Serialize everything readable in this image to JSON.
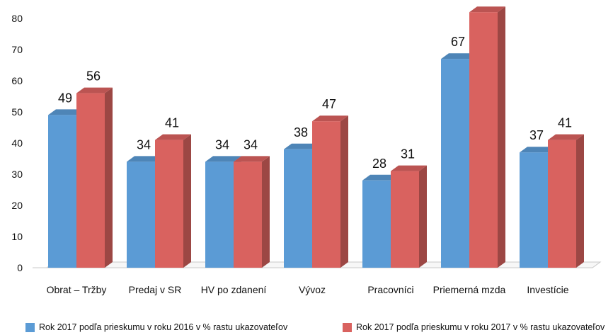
{
  "chart_data": {
    "type": "bar",
    "categories": [
      "Obrat – Tržby",
      "Predaj v SR",
      "HV po zdanení",
      "Vývoz",
      "Pracovníci",
      "Priemerná mzda",
      "Investície"
    ],
    "series": [
      {
        "name": "Rok 2017 podľa prieskumu v roku 2016 v % rastu ukazovateľov",
        "values": [
          49,
          34,
          34,
          38,
          28,
          67,
          37
        ],
        "color": "#5B9BD5"
      },
      {
        "name": "Rok 2017 podľa prieskumu v roku 2017 v % rastu ukazovateľov",
        "values": [
          56,
          41,
          34,
          47,
          31,
          82,
          41
        ],
        "color": "#D9625F"
      }
    ],
    "y_ticks": [
      0,
      10,
      20,
      30,
      40,
      50,
      60,
      70,
      80
    ],
    "ylim": [
      0,
      80
    ],
    "legend_position": "bottom",
    "grid": false,
    "style": "3d-clustered"
  }
}
